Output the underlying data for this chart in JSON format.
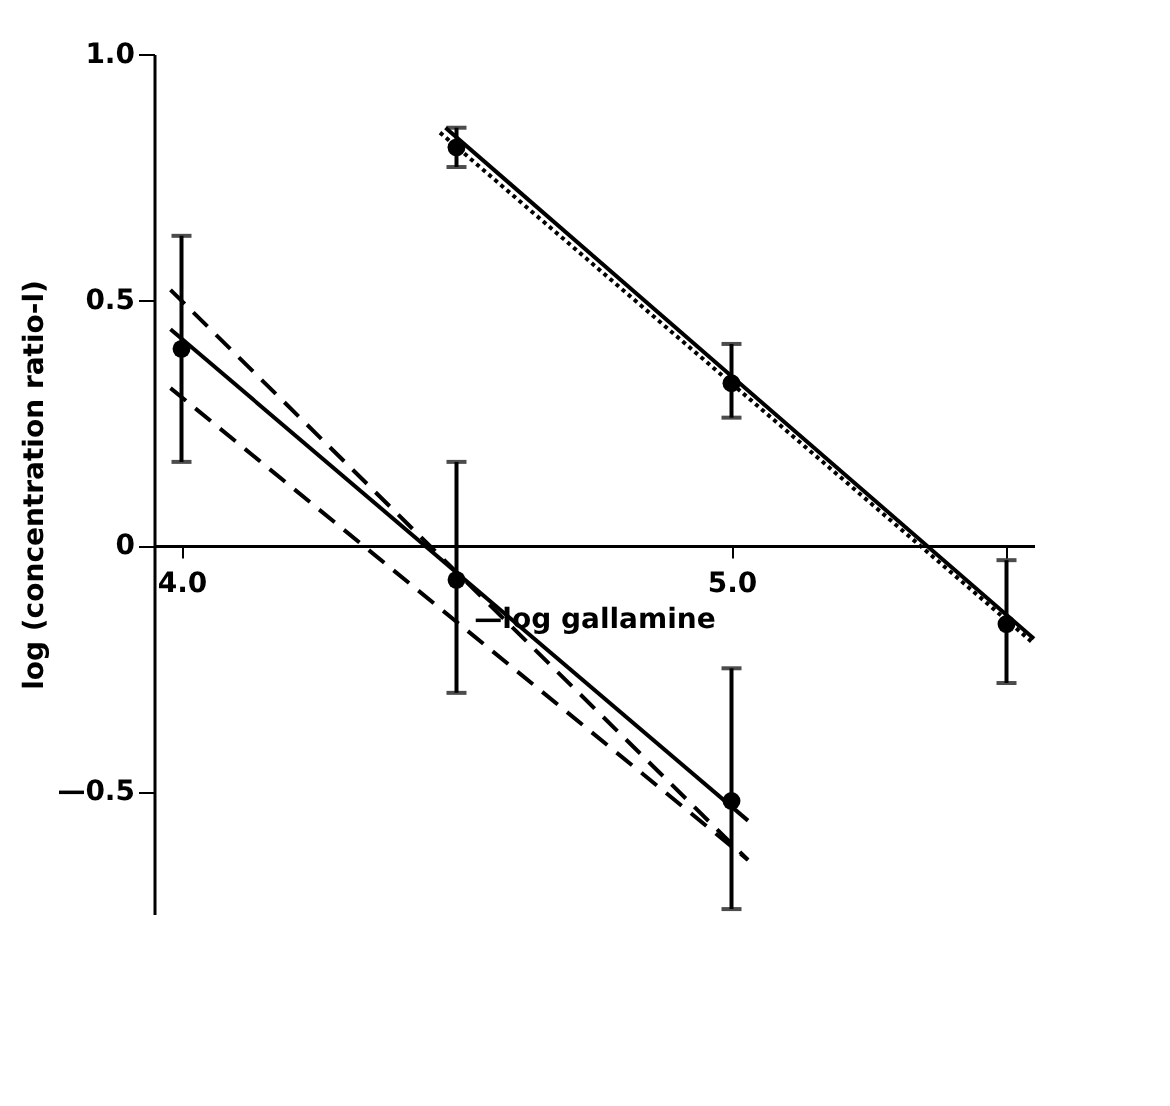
{
  "chart_data": {
    "type": "scatter",
    "xlabel": "—log gallamine",
    "ylabel": "log (concentration ratio-l)",
    "xlim": [
      3.95,
      5.55
    ],
    "ylim": [
      -0.75,
      1.0
    ],
    "xticks": [
      {
        "value": 4.0,
        "label": "4.0"
      },
      {
        "value": 4.5,
        "label": null
      },
      {
        "value": 5.0,
        "label": "5.0"
      },
      {
        "value": 5.5,
        "label": null
      }
    ],
    "yticks": [
      {
        "value": 1.0,
        "label": "1.0"
      },
      0.5,
      {
        "value": 0,
        "label": "0"
      },
      {
        "value": -0.5,
        "label": "—0.5"
      }
    ],
    "grid": false,
    "series": [
      {
        "color": "#000000",
        "marker": "circle",
        "x": [
          4.0,
          4.5,
          5.0
        ],
        "values": [
          0.4,
          -0.07,
          -0.52
        ],
        "errors": [
          [
            0.17,
            0.63
          ],
          [
            -0.3,
            0.17
          ],
          [
            -0.74,
            -0.25
          ]
        ]
      },
      {
        "color": "#000000",
        "marker": "circle",
        "x": [
          4.5,
          5.0,
          5.5
        ],
        "values": [
          0.81,
          0.33,
          -0.16
        ],
        "errors": [
          [
            0.77,
            0.85
          ],
          [
            0.26,
            0.41
          ],
          [
            -0.28,
            -0.03
          ]
        ]
      },
      {
        "type": "line",
        "color": "#000000",
        "line_style": "solid",
        "marker": "none",
        "x": [
          3.98,
          5.03
        ],
        "values": [
          0.44,
          -0.56
        ]
      },
      {
        "type": "line",
        "color": "#000000",
        "line_style": "dashed",
        "marker": "none",
        "x": [
          3.98,
          5.03
        ],
        "values": [
          0.52,
          -0.64
        ]
      },
      {
        "type": "line",
        "color": "#000000",
        "line_style": "dashed",
        "marker": "none",
        "x": [
          3.98,
          5.03
        ],
        "values": [
          0.32,
          -0.64
        ]
      },
      {
        "type": "line",
        "color": "#000000",
        "line_style": "solid",
        "marker": "none",
        "x": [
          4.48,
          5.55
        ],
        "values": [
          0.85,
          -0.19
        ]
      },
      {
        "type": "line",
        "color": "#000000",
        "line_style": "dotted",
        "marker": "none",
        "x": [
          4.47,
          5.55
        ],
        "values": [
          0.84,
          -0.2
        ]
      }
    ]
  }
}
